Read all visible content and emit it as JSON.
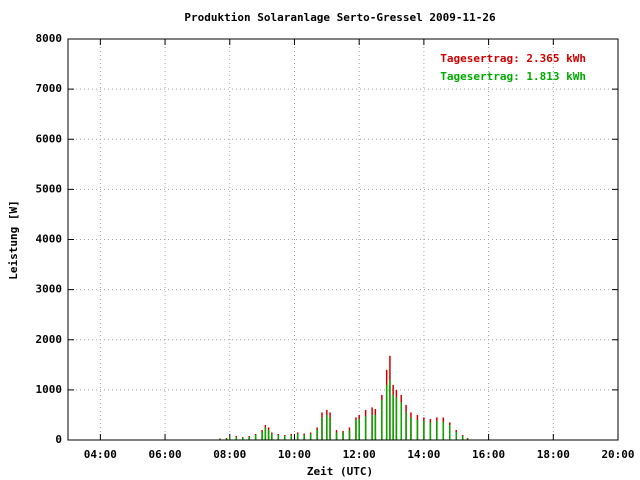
{
  "chart_data": {
    "type": "impulse",
    "title": "Produktion Solaranlage Serto-Gressel 2009-11-26",
    "xlabel": "Zeit (UTC)",
    "ylabel": "Leistung [W]",
    "xlim": [
      3,
      20
    ],
    "ylim": [
      0,
      8000
    ],
    "xticks": [
      {
        "value": 4,
        "label": "04:00"
      },
      {
        "value": 6,
        "label": "06:00"
      },
      {
        "value": 8,
        "label": "08:00"
      },
      {
        "value": 10,
        "label": "10:00"
      },
      {
        "value": 12,
        "label": "12:00"
      },
      {
        "value": 14,
        "label": "14:00"
      },
      {
        "value": 16,
        "label": "16:00"
      },
      {
        "value": 18,
        "label": "18:00"
      },
      {
        "value": 20,
        "label": "20:00"
      }
    ],
    "yticks": [
      0,
      1000,
      2000,
      3000,
      4000,
      5000,
      6000,
      7000,
      8000
    ],
    "grid": true,
    "x": [
      7.7,
      7.9,
      8.0,
      8.2,
      8.4,
      8.6,
      8.8,
      9.0,
      9.1,
      9.2,
      9.3,
      9.5,
      9.7,
      9.9,
      10.1,
      10.3,
      10.5,
      10.7,
      10.85,
      11.0,
      11.1,
      11.3,
      11.5,
      11.7,
      11.9,
      12.0,
      12.2,
      12.4,
      12.5,
      12.7,
      12.85,
      12.95,
      13.05,
      13.15,
      13.3,
      13.45,
      13.6,
      13.8,
      14.0,
      14.2,
      14.4,
      14.6,
      14.8,
      15.0,
      15.2,
      15.35
    ],
    "series": [
      {
        "name": "Tagesertrag: 2.365 kWh",
        "color": "#cc0000",
        "values": [
          30,
          40,
          60,
          80,
          60,
          80,
          120,
          200,
          300,
          250,
          150,
          120,
          100,
          120,
          150,
          130,
          150,
          250,
          550,
          600,
          550,
          200,
          180,
          250,
          450,
          500,
          600,
          650,
          620,
          900,
          1400,
          1680,
          1100,
          1000,
          900,
          700,
          550,
          500,
          450,
          420,
          450,
          450,
          350,
          200,
          100,
          40
        ]
      },
      {
        "name": "Tagesertrag: 1.813 kWh",
        "color": "#00aa00",
        "values": [
          20,
          30,
          50,
          60,
          50,
          60,
          100,
          160,
          250,
          200,
          120,
          100,
          80,
          90,
          120,
          100,
          120,
          200,
          450,
          500,
          450,
          150,
          150,
          200,
          400,
          420,
          480,
          500,
          500,
          800,
          1100,
          1200,
          900,
          850,
          750,
          550,
          450,
          400,
          380,
          350,
          380,
          360,
          300,
          160,
          80,
          30
        ]
      }
    ]
  }
}
